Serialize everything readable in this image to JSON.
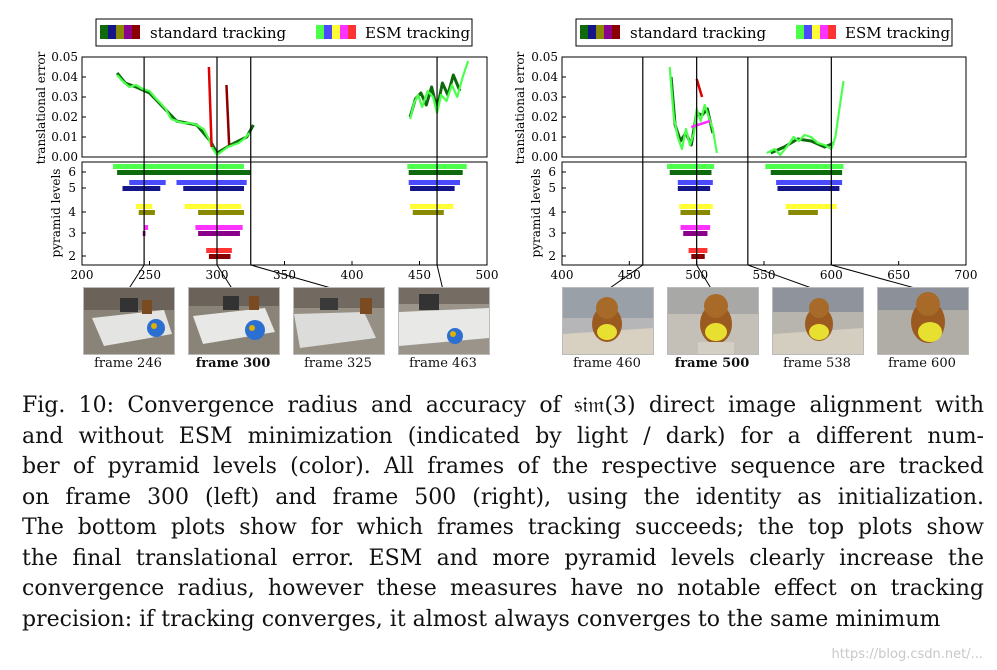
{
  "figure": {
    "legend": {
      "standard": "standard tracking",
      "esm": "ESM tracking"
    },
    "y_label_top": "translational error",
    "y_label_bottom": "pyramid levels",
    "pyramid_colors": {
      "6": "#22b822",
      "5": "#1a1ad6",
      "4": "#d8d800",
      "3": "#d800d8",
      "2": "#d80000"
    },
    "std_colors": [
      "#0d6b0d",
      "#15158a",
      "#8a8a00",
      "#8a008a",
      "#8a0000"
    ],
    "esm_colors": [
      "#4dff4d",
      "#4a4aff",
      "#ffff33",
      "#ff33ff",
      "#ff3333"
    ]
  },
  "panels": [
    {
      "id": "left",
      "xlim": [
        200,
        500
      ],
      "ylim": [
        0,
        0.05
      ],
      "xticks": [
        "200",
        "250",
        "300",
        "350",
        "400",
        "450",
        "500"
      ],
      "yticks": [
        "0.00",
        "0.01",
        "0.02",
        "0.03",
        "0.04",
        "0.05"
      ],
      "levels": [
        "2",
        "3",
        "4",
        "5",
        "6"
      ],
      "marker_frames": [
        246,
        300,
        325,
        463
      ],
      "error_series": {
        "esm": [
          [
            226,
            0.041
          ],
          [
            230,
            0.038
          ],
          [
            235,
            0.035
          ],
          [
            240,
            0.036
          ],
          [
            245,
            0.034
          ],
          [
            250,
            0.033
          ],
          [
            255,
            0.029
          ],
          [
            258,
            0.027
          ],
          [
            262,
            0.024
          ],
          [
            266,
            0.019
          ],
          [
            270,
            0.018
          ],
          [
            275,
            0.017
          ],
          [
            280,
            0.017
          ],
          [
            285,
            0.016
          ],
          [
            290,
            0.014
          ],
          [
            294,
            0.009
          ],
          [
            297,
            0.004
          ],
          [
            300,
            0.001
          ],
          [
            304,
            0.003
          ],
          [
            308,
            0.005
          ],
          [
            312,
            0.006
          ],
          [
            316,
            0.007
          ],
          [
            320,
            0.009
          ],
          [
            324,
            0.012
          ]
        ],
        "std": [
          [
            226,
            0.042
          ],
          [
            232,
            0.037
          ],
          [
            240,
            0.035
          ],
          [
            250,
            0.032
          ],
          [
            260,
            0.025
          ],
          [
            270,
            0.018
          ],
          [
            285,
            0.016
          ],
          [
            295,
            0.008
          ],
          [
            300,
            0.002
          ],
          [
            310,
            0.006
          ],
          [
            322,
            0.01
          ],
          [
            327,
            0.016
          ]
        ],
        "esm_right": [
          [
            443,
            0.019
          ],
          [
            446,
            0.027
          ],
          [
            449,
            0.031
          ],
          [
            452,
            0.025
          ],
          [
            456,
            0.033
          ],
          [
            460,
            0.03
          ],
          [
            463,
            0.022
          ],
          [
            466,
            0.031
          ],
          [
            470,
            0.028
          ],
          [
            474,
            0.036
          ],
          [
            478,
            0.03
          ],
          [
            482,
            0.04
          ],
          [
            486,
            0.048
          ]
        ],
        "std_right": [
          [
            443,
            0.02
          ],
          [
            447,
            0.029
          ],
          [
            451,
            0.032
          ],
          [
            455,
            0.026
          ],
          [
            459,
            0.035
          ],
          [
            463,
            0.024
          ],
          [
            467,
            0.037
          ],
          [
            471,
            0.031
          ],
          [
            475,
            0.041
          ],
          [
            480,
            0.033
          ]
        ],
        "spikes": [
          [
            {
              "f": 294,
              "v": 0.045,
              "c": "#e00000"
            },
            {
              "f": 296,
              "v": 0.005,
              "c": "#e00000"
            }
          ],
          [
            {
              "f": 307,
              "v": 0.036,
              "c": "#8a0000"
            },
            {
              "f": 309,
              "v": 0.006,
              "c": "#8a0000"
            }
          ]
        ]
      },
      "ranges": {
        "6": {
          "esm": [
            [
              223,
              320
            ],
            [
              441,
              485
            ]
          ],
          "std": [
            [
              226,
              325
            ],
            [
              442,
              482
            ]
          ]
        },
        "5": {
          "esm": [
            [
              235,
              262
            ],
            [
              270,
              322
            ],
            [
              442,
              480
            ]
          ],
          "std": [
            [
              230,
              258
            ],
            [
              275,
              320
            ],
            [
              443,
              476
            ]
          ]
        },
        "4": {
          "esm": [
            [
              240,
              252
            ],
            [
              276,
              318
            ],
            [
              443,
              475
            ]
          ],
          "std": [
            [
              242,
              254
            ],
            [
              286,
              320
            ],
            [
              445,
              468
            ]
          ]
        },
        "3": {
          "esm": [
            [
              246,
              249
            ],
            [
              284,
              319
            ]
          ],
          "std": [
            [
              245,
              247
            ],
            [
              286,
              317
            ]
          ]
        },
        "2": {
          "esm": [
            [
              292,
              311
            ]
          ],
          "std": [
            [
              294,
              310
            ]
          ]
        }
      }
    },
    {
      "id": "right",
      "xlim": [
        400,
        700
      ],
      "ylim": [
        0,
        0.05
      ],
      "xticks": [
        "400",
        "450",
        "500",
        "550",
        "600",
        "650",
        "700"
      ],
      "yticks": [
        "0.00",
        "0.01",
        "0.02",
        "0.03",
        "0.04",
        "0.05"
      ],
      "levels": [
        "2",
        "3",
        "4",
        "5",
        "6"
      ],
      "marker_frames": [
        460,
        500,
        538,
        600
      ],
      "error_series": {
        "esm": [
          [
            480,
            0.045
          ],
          [
            483,
            0.02
          ],
          [
            486,
            0.01
          ],
          [
            489,
            0.004
          ],
          [
            492,
            0.014
          ],
          [
            495,
            0.006
          ],
          [
            498,
            0.012
          ],
          [
            500,
            0.024
          ],
          [
            503,
            0.018
          ],
          [
            506,
            0.026
          ],
          [
            509,
            0.02
          ],
          [
            512,
            0.014
          ],
          [
            515,
            0.002
          ]
        ],
        "std": [
          [
            481,
            0.04
          ],
          [
            484,
            0.016
          ],
          [
            488,
            0.008
          ],
          [
            492,
            0.012
          ],
          [
            496,
            0.006
          ],
          [
            500,
            0.022
          ],
          [
            504,
            0.021
          ],
          [
            508,
            0.024
          ],
          [
            512,
            0.012
          ]
        ],
        "esm_right": [
          [
            552,
            0.002
          ],
          [
            558,
            0.004
          ],
          [
            562,
            0.001
          ],
          [
            568,
            0.006
          ],
          [
            572,
            0.01
          ],
          [
            576,
            0.008
          ],
          [
            580,
            0.011
          ],
          [
            585,
            0.01
          ],
          [
            590,
            0.007
          ],
          [
            595,
            0.006
          ],
          [
            600,
            0.004
          ],
          [
            603,
            0.01
          ],
          [
            606,
            0.024
          ],
          [
            609,
            0.038
          ]
        ],
        "std_right": [
          [
            555,
            0.002
          ],
          [
            565,
            0.005
          ],
          [
            575,
            0.009
          ],
          [
            585,
            0.008
          ],
          [
            595,
            0.005
          ],
          [
            602,
            0.007
          ]
        ],
        "spikes": [
          [
            {
              "f": 500,
              "v": 0.039,
              "c": "#e00000"
            },
            {
              "f": 504,
              "v": 0.03,
              "c": "#e00000"
            }
          ],
          [
            {
              "f": 496,
              "v": 0.015,
              "c": "#ff33ff"
            },
            {
              "f": 510,
              "v": 0.018,
              "c": "#ff33ff"
            }
          ]
        ]
      },
      "ranges": {
        "6": {
          "esm": [
            [
              478,
              513
            ],
            [
              551,
              609
            ]
          ],
          "std": [
            [
              480,
              511
            ],
            [
              555,
              608
            ]
          ]
        },
        "5": {
          "esm": [
            [
              486,
              512
            ],
            [
              559,
              608
            ]
          ],
          "std": [
            [
              486,
              510
            ],
            [
              560,
              606
            ]
          ]
        },
        "4": {
          "esm": [
            [
              487,
              512
            ],
            [
              566,
              604
            ]
          ],
          "std": [
            [
              488,
              510
            ],
            [
              568,
              590
            ]
          ]
        },
        "3": {
          "esm": [
            [
              488,
              510
            ]
          ],
          "std": [
            [
              490,
              508
            ]
          ]
        },
        "2": {
          "esm": [
            [
              494,
              508
            ]
          ],
          "std": [
            [
              496,
              506
            ]
          ]
        }
      }
    }
  ],
  "thumbnails": {
    "left": [
      {
        "label": "frame 246",
        "bold": false
      },
      {
        "label": "frame 300",
        "bold": true
      },
      {
        "label": "frame 325",
        "bold": false
      },
      {
        "label": "frame 463",
        "bold": false
      }
    ],
    "right": [
      {
        "label": "frame 460",
        "bold": false
      },
      {
        "label": "frame 500",
        "bold": true
      },
      {
        "label": "frame 538",
        "bold": false
      },
      {
        "label": "frame 600",
        "bold": false
      }
    ]
  },
  "caption": {
    "lines": [
      "Fig. 10: Convergence radius and accuracy of 𝔰𝔦𝔪(3) direct image alignment with",
      "and without ESM minimization (indicated by light / dark) for a different num-",
      "ber of pyramid levels (color). All frames of the respective sequence are tracked",
      "on frame 300 (left) and frame 500 (right), using the identity as initialization.",
      "The bottom plots show for which frames tracking succeeds; the top plots show",
      "the final translational error. ESM and more pyramid levels clearly increase the",
      "convergence radius, however these measures have no notable effect on tracking",
      "precision: if tracking converges, it almost always converges to the same minimum"
    ]
  },
  "watermark": "https://blog.csdn.net/..."
}
